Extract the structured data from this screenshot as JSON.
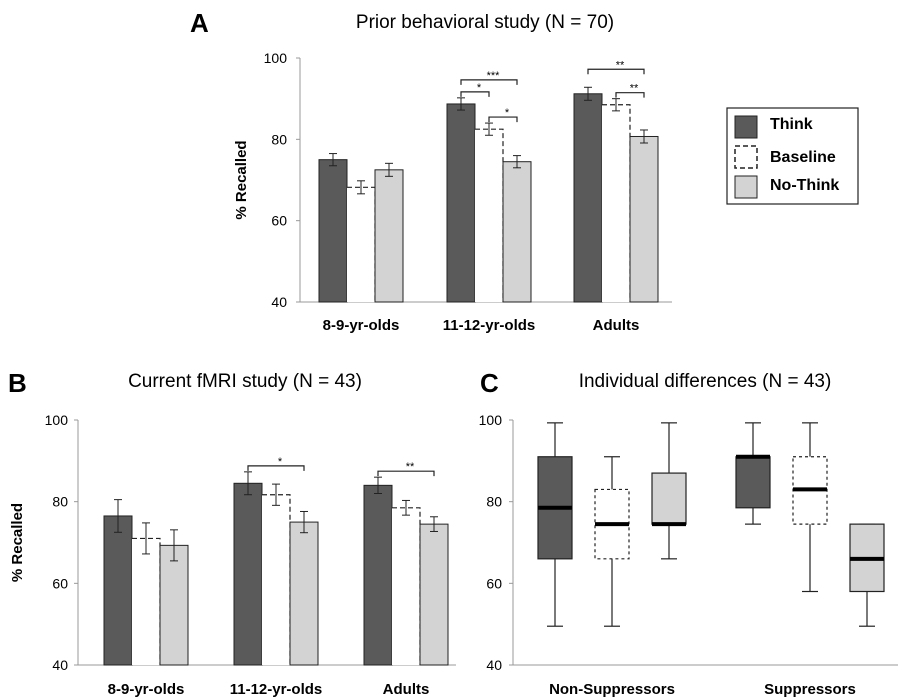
{
  "colors": {
    "think": "#5a5a5a",
    "baseline": "#ffffff",
    "nothink": "#d3d3d3",
    "axis": "#888888",
    "line": "#222222"
  },
  "legend": {
    "items": [
      {
        "key": "think",
        "label": "Think"
      },
      {
        "key": "baseline",
        "label": "Baseline"
      },
      {
        "key": "nothink",
        "label": "No-Think"
      }
    ]
  },
  "panels": {
    "A": {
      "letter": "A",
      "title": "Prior behavioral study (N = 70)"
    },
    "B": {
      "letter": "B",
      "title": "Current fMRI study (N = 43)"
    },
    "C": {
      "letter": "C",
      "title": "Individual differences (N = 43)"
    }
  },
  "chart_data": [
    {
      "id": "A",
      "type": "bar",
      "title": "Prior behavioral study (N = 70)",
      "ylabel": "% Recalled",
      "ylim": [
        40,
        100
      ],
      "yticks": [
        40,
        60,
        80,
        100
      ],
      "categories": [
        "8-9-yr-olds",
        "11-12-yr-olds",
        "Adults"
      ],
      "series": [
        {
          "key": "think",
          "name": "Think",
          "values": [
            75,
            88.7,
            91.2
          ],
          "errors": [
            1.5,
            1.5,
            1.6
          ]
        },
        {
          "key": "baseline",
          "name": "Baseline",
          "values": [
            68.2,
            82.5,
            88.5
          ],
          "errors": [
            1.6,
            1.5,
            1.5
          ]
        },
        {
          "key": "nothink",
          "name": "No-Think",
          "values": [
            72.5,
            74.5,
            80.7
          ],
          "errors": [
            1.6,
            1.5,
            1.6
          ]
        }
      ],
      "significance": [
        {
          "category": 1,
          "from": 0,
          "to": 2,
          "label": "***",
          "level": 2
        },
        {
          "category": 1,
          "from": 0,
          "to": 1,
          "label": "*",
          "level": 1
        },
        {
          "category": 1,
          "from": 1,
          "to": 2,
          "label": "*",
          "level": 1
        },
        {
          "category": 2,
          "from": 0,
          "to": 2,
          "label": "**",
          "level": 2
        },
        {
          "category": 2,
          "from": 1,
          "to": 2,
          "label": "**",
          "level": 1
        }
      ]
    },
    {
      "id": "B",
      "type": "bar",
      "title": "Current fMRI study (N = 43)",
      "ylabel": "% Recalled",
      "ylim": [
        40,
        100
      ],
      "yticks": [
        40,
        60,
        80,
        100
      ],
      "categories": [
        "8-9-yr-olds",
        "11-12-yr-olds",
        "Adults"
      ],
      "series": [
        {
          "key": "think",
          "name": "Think",
          "values": [
            76.5,
            84.5,
            84
          ],
          "errors": [
            4,
            2.8,
            2
          ]
        },
        {
          "key": "baseline",
          "name": "Baseline",
          "values": [
            71,
            81.7,
            78.5
          ],
          "errors": [
            3.8,
            2.6,
            1.8
          ]
        },
        {
          "key": "nothink",
          "name": "No-Think",
          "values": [
            69.3,
            75,
            74.5
          ],
          "errors": [
            3.8,
            2.6,
            1.8
          ]
        }
      ],
      "significance": [
        {
          "category": 1,
          "from": 0,
          "to": 2,
          "label": "*",
          "level": 1
        },
        {
          "category": 2,
          "from": 0,
          "to": 2,
          "label": "**",
          "level": 1
        }
      ]
    },
    {
      "id": "C",
      "type": "box",
      "title": "Individual differences (N = 43)",
      "ylim": [
        40,
        100
      ],
      "yticks": [
        40,
        60,
        80,
        100
      ],
      "categories": [
        "Non-Suppressors",
        "Suppressors"
      ],
      "series": [
        {
          "key": "think",
          "name": "Think",
          "boxes": [
            {
              "min": 49.5,
              "q1": 66,
              "median": 78.5,
              "q3": 91,
              "max": 99.3
            },
            {
              "min": 74.5,
              "q1": 78.5,
              "median": 91,
              "q3": 91,
              "max": 99.3
            }
          ]
        },
        {
          "key": "baseline",
          "name": "Baseline",
          "boxes": [
            {
              "min": 49.5,
              "q1": 66,
              "median": 74.5,
              "q3": 83,
              "max": 91
            },
            {
              "min": 58,
              "q1": 74.5,
              "median": 83,
              "q3": 91,
              "max": 99.3
            }
          ]
        },
        {
          "key": "nothink",
          "name": "No-Think",
          "boxes": [
            {
              "min": 66,
              "q1": 74.5,
              "median": 74.5,
              "q3": 87,
              "max": 99.3
            },
            {
              "min": 49.5,
              "q1": 58,
              "median": 66,
              "q3": 74.5,
              "max": 74.5
            }
          ]
        }
      ]
    }
  ]
}
